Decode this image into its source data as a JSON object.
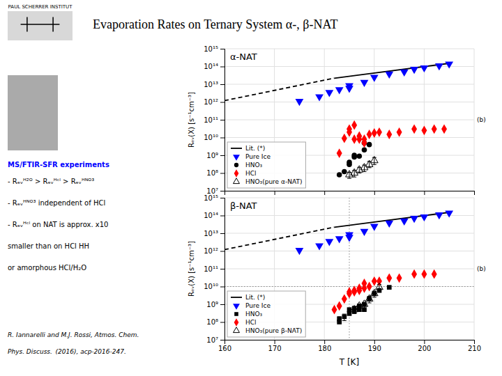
{
  "chart_data": [
    {
      "type": "scatter",
      "title": "Evaporation Rates on Ternary System α-, β-NAT",
      "subtitle": "α-NAT",
      "ylabel": "Rₑᵥ(X) [s⁻¹cm⁻³]",
      "annotations": [
        "(b)",
        "PAUL SCHERRER INSTITUT",
        "MS/FTIR-SFR experiments",
        "- Rₑᵥᴴ²ᴼ > Rₑᵥᴴᶜˡ > Rₑᵥᴴᴺᴼ³",
        "- Rₑᵥᴴᴺᴼ³ independent of HCl",
        "- Rₑᵥᴴᶜˡ on NAT is approx. x10",
        "smaller than on HCl HH",
        "or amorphous HCl/H₂O",
        "R. Iannarelli and M.J. Rossi, Atmos. Chem.",
        "Phys. Discuss.  (2016), acp-2016-247."
      ],
      "log": "y",
      "grid": true,
      "legend": "lower left",
      "tick_labels": "y",
      "xlim": [
        160,
        210
      ],
      "xticks": [
        160,
        170,
        180,
        190,
        200,
        210
      ],
      "ylim": [
        10000000.0,
        1000000000000000.0
      ],
      "yticks": [
        {
          "value": 10000000.0,
          "label": "10⁷"
        },
        {
          "value": 100000000.0,
          "label": "10⁸"
        },
        {
          "value": 1000000000.0,
          "label": "10⁹"
        },
        {
          "value": 10000000000.0,
          "label": "10¹⁰"
        },
        {
          "value": 100000000000.0,
          "label": "10¹¹"
        },
        {
          "value": 1000000000000.0,
          "label": "10¹²"
        },
        {
          "value": 10000000000000.0,
          "label": "10¹³"
        },
        {
          "value": 100000000000000.0,
          "label": "10¹⁴"
        },
        {
          "value": 1000000000000000.0,
          "label": "10¹⁵"
        }
      ],
      "series": [
        {
          "type": "line",
          "line_style": "dashed",
          "color": "black",
          "x": [
            160,
            182
          ],
          "values": [
            1200000000000.0,
            22000000000000.0
          ]
        },
        {
          "name": "Lit. (*)",
          "type": "line",
          "line_style": "solid",
          "color": "black",
          "x": [
            182,
            205
          ],
          "values": [
            22000000000000.0,
            150000000000000.0
          ]
        },
        {
          "name": "Pure Ice",
          "type": "scatter",
          "marker": "triangle-down",
          "color": "blue",
          "x": [
            175,
            179,
            181,
            183,
            185,
            185,
            188,
            190,
            193,
            196,
            198,
            200,
            203,
            205
          ],
          "values": [
            1100000000000.0,
            2000000000000.0,
            3500000000000.0,
            5000000000000.0,
            6000000000000.0,
            8500000000000.0,
            13000000000000.0,
            25000000000000.0,
            38000000000000.0,
            50000000000000.0,
            70000000000000.0,
            85000000000000.0,
            110000000000000.0,
            140000000000000.0
          ]
        },
        {
          "name": "HNO₃",
          "type": "scatter",
          "marker": "circle",
          "color": "black",
          "x": [
            183,
            184,
            185,
            185,
            186,
            186,
            187,
            188,
            188,
            189
          ],
          "values": [
            80000000.0,
            120000000.0,
            300000000.0,
            400000000.0,
            800000000.0,
            1000000000.0,
            900000000.0,
            2000000000.0,
            5000000000.0,
            4000000000.0
          ]
        },
        {
          "name": "HCl",
          "type": "scatter",
          "marker": "diamond",
          "color": "red",
          "x": [
            183,
            184,
            185,
            185,
            186,
            186,
            187,
            187,
            188,
            188,
            189,
            190,
            191,
            193,
            195,
            198,
            200,
            202,
            204
          ],
          "values": [
            1300000000.0,
            9000000000.0,
            20000000000.0,
            30000000000.0,
            50000000000.0,
            8000000000.0,
            8000000000.0,
            12000000000.0,
            5000000000.0,
            8000000000.0,
            15000000000.0,
            18000000000.0,
            20000000000.0,
            15000000000.0,
            20000000000.0,
            30000000000.0,
            25000000000.0,
            30000000000.0,
            30000000000.0
          ]
        },
        {
          "name": "HNO₃(pure α-NAT)",
          "type": "scatter",
          "marker": "triangle-up-open",
          "color": "black",
          "x": [
            185,
            186,
            187,
            188,
            189,
            190
          ],
          "values": [
            80000000.0,
            100000000.0,
            150000000.0,
            200000000.0,
            300000000.0,
            500000000.0
          ]
        },
        {
          "type": "errorbar",
          "color": "black",
          "x": [
            185,
            186,
            187,
            188,
            189,
            190
          ],
          "values": [
            80000000.0,
            100000000.0,
            150000000.0,
            200000000.0,
            300000000.0,
            500000000.0
          ],
          "error_low": [
            30000000.0,
            40000000.0,
            50000000.0,
            80000000.0,
            100000000.0,
            200000000.0
          ],
          "error_high": [
            30000000.0,
            40000000.0,
            60000000.0,
            80000000.0,
            150000000.0,
            250000000.0
          ]
        }
      ]
    },
    {
      "type": "scatter",
      "subtitle": "β-NAT",
      "xlabel": "T [K]",
      "ylabel": "Rₑᵥ(X) [s⁻¹cm⁻³]",
      "annotations": [
        "(b)"
      ],
      "log": "y",
      "grid": true,
      "legend": "lower left",
      "xlim": [
        160,
        210
      ],
      "xticks": [
        160,
        170,
        180,
        190,
        200,
        210
      ],
      "ylim": [
        10000000.0,
        1000000000000000.0
      ],
      "yticks": [
        {
          "value": 10000000.0,
          "label": "10⁷"
        },
        {
          "value": 100000000.0,
          "label": "10⁸"
        },
        {
          "value": 1000000000.0,
          "label": "10⁹"
        },
        {
          "value": 10000000000.0,
          "label": "10¹⁰"
        },
        {
          "value": 100000000000.0,
          "label": "10¹¹"
        },
        {
          "value": 1000000000000.0,
          "label": "10¹²"
        },
        {
          "value": 10000000000000.0,
          "label": "10¹³"
        },
        {
          "value": 100000000000000.0,
          "label": "10¹⁴"
        },
        {
          "value": 1000000000000000.0,
          "label": "10¹⁵"
        }
      ],
      "vlines": [
        185
      ],
      "hlines": [
        10000000000.0
      ],
      "series": [
        {
          "type": "line",
          "line_style": "dashed",
          "color": "black",
          "x": [
            160,
            182
          ],
          "values": [
            1200000000000.0,
            22000000000000.0
          ]
        },
        {
          "name": "Lit. (*)",
          "type": "line",
          "line_style": "solid",
          "color": "black",
          "x": [
            182,
            205
          ],
          "values": [
            22000000000000.0,
            150000000000000.0
          ]
        },
        {
          "name": "Pure Ice",
          "type": "scatter",
          "marker": "triangle-down",
          "color": "blue",
          "x": [
            175,
            179,
            181,
            183,
            185,
            185,
            188,
            190,
            193,
            196,
            198,
            200,
            203,
            205
          ],
          "values": [
            1100000000000.0,
            2000000000000.0,
            3500000000000.0,
            5000000000000.0,
            6000000000000.0,
            8500000000000.0,
            13000000000000.0,
            25000000000000.0,
            38000000000000.0,
            50000000000000.0,
            70000000000000.0,
            85000000000000.0,
            110000000000000.0,
            140000000000000.0
          ]
        },
        {
          "name": "HNO₃",
          "type": "scatter",
          "marker": "square",
          "color": "black",
          "x": [
            183,
            183,
            184,
            185,
            185,
            186,
            186,
            187,
            187,
            188,
            188,
            189,
            190,
            191,
            193
          ],
          "values": [
            100000000.0,
            150000000.0,
            200000000.0,
            300000000.0,
            500000000.0,
            400000000.0,
            600000000.0,
            500000000.0,
            800000000.0,
            500000000.0,
            1000000000.0,
            2000000000.0,
            4000000000.0,
            6000000000.0,
            9000000000.0
          ]
        },
        {
          "name": "HCl",
          "type": "scatter",
          "marker": "diamond",
          "color": "red",
          "x": [
            182,
            183,
            184,
            185,
            185,
            186,
            186,
            187,
            187,
            188,
            188,
            189,
            190,
            191,
            193,
            195,
            198,
            200,
            202
          ],
          "values": [
            500000000.0,
            800000000.0,
            2000000000.0,
            4000000000.0,
            5000000000.0,
            5000000000.0,
            6000000000.0,
            8000000000.0,
            6000000000.0,
            8000000000.0,
            15000000000.0,
            10000000000.0,
            20000000000.0,
            20000000000.0,
            30000000000.0,
            30000000000.0,
            50000000000.0,
            50000000000.0,
            50000000000.0
          ]
        },
        {
          "name": "HNO₃(pure β-NAT)",
          "type": "scatter",
          "marker": "triangle-up-open",
          "color": "black",
          "x": [
            186,
            187,
            188,
            189,
            190,
            191
          ],
          "values": [
            500000000.0,
            800000000.0,
            1000000000.0,
            2000000000.0,
            4000000000.0,
            9000000000.0
          ]
        },
        {
          "type": "errorbar",
          "color": "black",
          "x": [
            183,
            184,
            185,
            186,
            187,
            188,
            189,
            190,
            191
          ],
          "values": [
            150000000.0,
            200000000.0,
            400000000.0,
            500000000.0,
            700000000.0,
            800000000.0,
            2000000000.0,
            4000000000.0,
            9000000000.0
          ],
          "error_low": [
            50000000.0,
            80000000.0,
            150000000.0,
            200000000.0,
            300000000.0,
            300000000.0,
            800000000.0,
            1500000000.0,
            4000000000.0
          ],
          "error_high": [
            50000000.0,
            80000000.0,
            150000000.0,
            200000000.0,
            300000000.0,
            300000000.0,
            800000000.0,
            1500000000.0,
            4000000000.0
          ]
        }
      ]
    }
  ]
}
